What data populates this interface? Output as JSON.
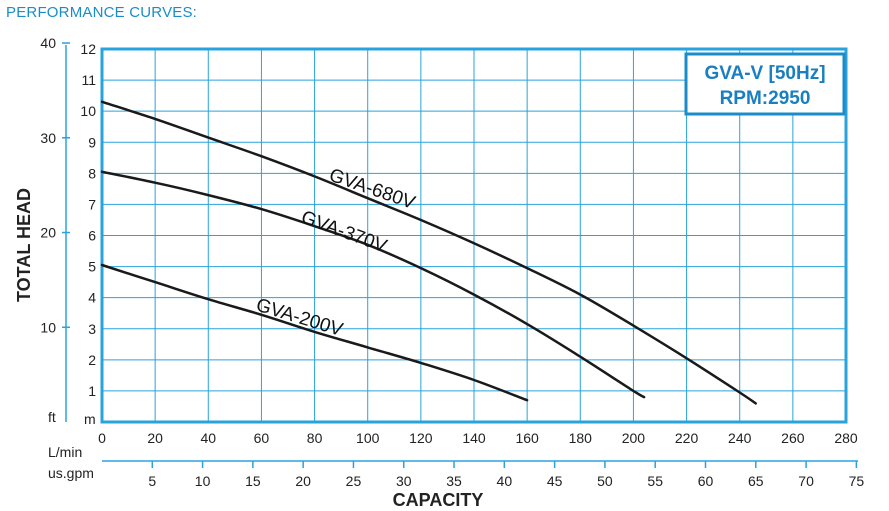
{
  "page_title": "PERFORMANCE CURVES:",
  "chart_data": {
    "type": "line",
    "title": "",
    "ylabel": "TOTAL HEAD",
    "xlabel": "CAPACITY",
    "y_unit_m": "m",
    "y_unit_ft": "ft",
    "x_unit_lmin": "L/min",
    "x_unit_usgpm": "us.gpm",
    "xlim": [
      0,
      280
    ],
    "ylim": [
      0,
      12
    ],
    "x_ticks": [
      0,
      20,
      40,
      60,
      80,
      100,
      120,
      140,
      160,
      180,
      200,
      220,
      240,
      260,
      280
    ],
    "y_ticks_m": [
      1,
      2,
      3,
      4,
      5,
      6,
      7,
      8,
      9,
      10,
      11,
      12
    ],
    "y_ticks_ft": [
      10,
      20,
      30,
      40
    ],
    "x_ticks_usgpm": [
      5,
      10,
      15,
      20,
      25,
      30,
      35,
      40,
      45,
      50,
      55,
      60,
      65,
      70,
      75
    ],
    "grid": true,
    "legend_box": {
      "line1": "GVA-V [50Hz]",
      "line2": "RPM:2950",
      "placement": "top-right"
    },
    "series": [
      {
        "name": "GVA-680V",
        "x": [
          0,
          20,
          40,
          60,
          80,
          100,
          120,
          140,
          160,
          180,
          200,
          220,
          240,
          246
        ],
        "y": [
          10.3,
          9.75,
          9.15,
          8.55,
          7.9,
          7.2,
          6.5,
          5.75,
          4.95,
          4.1,
          3.1,
          2.05,
          0.95,
          0.6
        ]
      },
      {
        "name": "GVA-370V",
        "x": [
          0,
          20,
          40,
          60,
          80,
          100,
          120,
          140,
          160,
          180,
          200,
          204
        ],
        "y": [
          8.05,
          7.7,
          7.3,
          6.85,
          6.3,
          5.7,
          4.95,
          4.1,
          3.15,
          2.1,
          1.0,
          0.8
        ]
      },
      {
        "name": "GVA-200V",
        "x": [
          0,
          20,
          40,
          60,
          80,
          100,
          120,
          140,
          160
        ],
        "y": [
          5.05,
          4.5,
          3.95,
          3.45,
          2.9,
          2.4,
          1.9,
          1.35,
          0.7
        ]
      }
    ]
  }
}
